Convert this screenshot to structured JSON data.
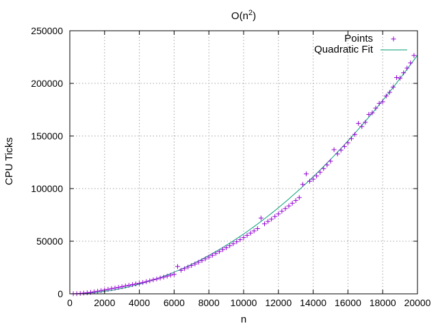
{
  "chart_data": {
    "type": "scatter",
    "title_main": "O(n",
    "title_sup": "2",
    "title_end": ")",
    "xlabel": "n",
    "ylabel": "CPU Ticks",
    "xlim": [
      0,
      20000
    ],
    "ylim": [
      0,
      250000
    ],
    "xticks": [
      0,
      2000,
      4000,
      6000,
      8000,
      10000,
      12000,
      14000,
      16000,
      18000,
      20000
    ],
    "yticks": [
      0,
      50000,
      100000,
      150000,
      200000,
      250000
    ],
    "grid": true,
    "legend_position": "top-right",
    "series": [
      {
        "name": "Points",
        "marker": "+",
        "color": "#9400d3",
        "x": [
          200,
          400,
          600,
          800,
          1000,
          1200,
          1400,
          1600,
          1800,
          2000,
          2200,
          2400,
          2600,
          2800,
          3000,
          3200,
          3400,
          3600,
          3800,
          4000,
          4200,
          4400,
          4600,
          4800,
          5000,
          5200,
          5400,
          5600,
          5800,
          6000,
          6200,
          6400,
          6600,
          6800,
          7000,
          7200,
          7400,
          7600,
          7800,
          8000,
          8200,
          8400,
          8600,
          8800,
          9000,
          9200,
          9400,
          9600,
          9800,
          10000,
          10200,
          10400,
          10600,
          10800,
          11000,
          11200,
          11400,
          11600,
          11800,
          12000,
          12200,
          12400,
          12600,
          12800,
          13000,
          13200,
          13400,
          13600,
          13800,
          14000,
          14200,
          14400,
          14600,
          14800,
          15000,
          15200,
          15400,
          15600,
          15800,
          16000,
          16200,
          16400,
          16600,
          16800,
          17000,
          17200,
          17400,
          17600,
          17800,
          18000,
          18200,
          18400,
          18600,
          18800,
          19000,
          19200,
          19400,
          19600,
          19800
        ],
        "y": [
          100,
          200,
          400,
          700,
          1000,
          1400,
          1900,
          2500,
          3100,
          3700,
          4300,
          5000,
          5500,
          6100,
          6800,
          7500,
          8100,
          8800,
          9400,
          10000,
          10800,
          11600,
          12400,
          13300,
          14100,
          15000,
          15900,
          16800,
          17700,
          18600,
          26000,
          22400,
          23900,
          25400,
          26900,
          28400,
          30000,
          31600,
          33200,
          34900,
          36600,
          38400,
          40200,
          42000,
          43800,
          45700,
          47600,
          49500,
          51500,
          53500,
          55600,
          57700,
          59800,
          62000,
          72000,
          66500,
          68800,
          71000,
          73500,
          76000,
          78500,
          81000,
          83500,
          86100,
          88700,
          91500,
          104000,
          114000,
          107000,
          109000,
          112000,
          115500,
          119000,
          122500,
          126000,
          137000,
          133000,
          136500,
          140000,
          143500,
          147500,
          151500,
          162000,
          159000,
          163000,
          170500,
          172000,
          176500,
          181000,
          182500,
          188000,
          191500,
          196500,
          205500,
          205000,
          210000,
          214500,
          219500,
          226500
        ]
      },
      {
        "name": "Quadratic Fit",
        "color": "#009e73",
        "coeffs": [
          0.000565,
          0.04,
          0
        ]
      }
    ]
  }
}
